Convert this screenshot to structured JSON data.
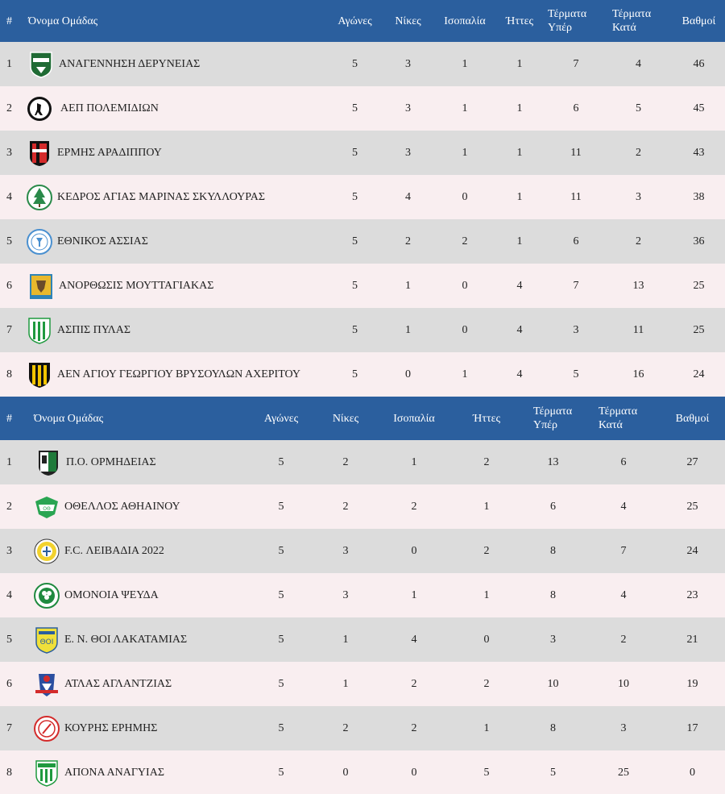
{
  "tables": [
    {
      "headers": {
        "pos": "#",
        "team": "Όνομα Ομάδας",
        "played": "Αγώνες",
        "wins": "Νίκες",
        "draws": "Ισοπαλία",
        "losses": "Ήττες",
        "gf1": "Τέρματα",
        "gf2": "Υπέρ",
        "ga1": "Τέρματα",
        "ga2": "Κατά",
        "points": "Βαθμοί"
      },
      "rows": [
        {
          "pos": "1",
          "team": "ΑΝΑΓΕΝΝΗΣΗ ΔΕΡΥΝΕΙΑΣ",
          "logo": "anagennisi-crest-icon",
          "played": "5",
          "wins": "3",
          "draws": "1",
          "losses": "1",
          "gf": "7",
          "ga": "4",
          "points": "46"
        },
        {
          "pos": "2",
          "team": "ΑΕΠ ΠΟΛΕΜΙΔΙΩΝ",
          "logo": "aep-crest-icon",
          "played": "5",
          "wins": "3",
          "draws": "1",
          "losses": "1",
          "gf": "6",
          "ga": "5",
          "points": "45"
        },
        {
          "pos": "3",
          "team": "ΕΡΜΗΣ ΑΡΑΔΙΠΠΟΥ",
          "logo": "ermis-crest-icon",
          "played": "5",
          "wins": "3",
          "draws": "1",
          "losses": "1",
          "gf": "11",
          "ga": "2",
          "points": "43"
        },
        {
          "pos": "4",
          "team": "ΚΕΔΡΟΣ ΑΓΙΑΣ ΜΑΡΙΝΑΣ ΣΚΥΛΛΟΥΡΑΣ",
          "logo": "kedros-crest-icon",
          "played": "5",
          "wins": "4",
          "draws": "0",
          "losses": "1",
          "gf": "11",
          "ga": "3",
          "points": "38"
        },
        {
          "pos": "5",
          "team": "ΕΘΝΙΚΟΣ ΑΣΣΙΑΣ",
          "logo": "ethnikos-crest-icon",
          "played": "5",
          "wins": "2",
          "draws": "2",
          "losses": "1",
          "gf": "6",
          "ga": "2",
          "points": "36"
        },
        {
          "pos": "6",
          "team": "ΑΝΟΡΘΩΣΙΣ ΜΟΥΤΤΑΓΙΑΚΑΣ",
          "logo": "anorthosis-crest-icon",
          "played": "5",
          "wins": "1",
          "draws": "0",
          "losses": "4",
          "gf": "7",
          "ga": "13",
          "points": "25"
        },
        {
          "pos": "7",
          "team": "ΑΣΠΙΣ ΠΥΛΑΣ",
          "logo": "aspis-crest-icon",
          "played": "5",
          "wins": "1",
          "draws": "0",
          "losses": "4",
          "gf": "3",
          "ga": "11",
          "points": "25"
        },
        {
          "pos": "8",
          "team": "ΑΕΝ ΑΓΙΟΥ ΓΕΩΡΓΙΟΥ ΒΡΥΣΟΥΛΩΝ ΑΧΕΡΙΤΟΥ",
          "logo": "aen-crest-icon",
          "played": "5",
          "wins": "0",
          "draws": "1",
          "losses": "4",
          "gf": "5",
          "ga": "16",
          "points": "24"
        }
      ]
    },
    {
      "headers": {
        "pos": "#",
        "team": "Όνομα Ομάδας",
        "played": "Αγώνες",
        "wins": "Νίκες",
        "draws": "Ισοπαλία",
        "losses": "Ήττες",
        "gf1": "Τέρματα",
        "gf2": "Υπέρ",
        "ga1": "Τέρματα",
        "ga2": "Κατά",
        "points": "Βαθμοί"
      },
      "rows": [
        {
          "pos": "1",
          "team": "Π.Ο. ΟΡΜΗΔΕΙΑΣ",
          "logo": "ormideia-crest-icon",
          "played": "5",
          "wins": "2",
          "draws": "1",
          "losses": "2",
          "gf": "13",
          "ga": "6",
          "points": "27"
        },
        {
          "pos": "2",
          "team": "ΟΘΕΛΛΟΣ ΑΘΗΑΙΝΟΥ",
          "logo": "othellos-crest-icon",
          "played": "5",
          "wins": "2",
          "draws": "2",
          "losses": "1",
          "gf": "6",
          "ga": "4",
          "points": "25"
        },
        {
          "pos": "3",
          "team": "F.C. ΛΕΙΒΑΔΙΑ 2022",
          "logo": "leivadia-crest-icon",
          "played": "5",
          "wins": "3",
          "draws": "0",
          "losses": "2",
          "gf": "8",
          "ga": "7",
          "points": "24"
        },
        {
          "pos": "4",
          "team": "ΟΜΟΝΟΙΑ ΨΕΥΔΑ",
          "logo": "omonoia-crest-icon",
          "played": "5",
          "wins": "3",
          "draws": "1",
          "losses": "1",
          "gf": "8",
          "ga": "4",
          "points": "23"
        },
        {
          "pos": "5",
          "team": "Ε. Ν. ΘΟΙ ΛΑΚΑΤΑΜΙΑΣ",
          "logo": "thoi-crest-icon",
          "played": "5",
          "wins": "1",
          "draws": "4",
          "losses": "0",
          "gf": "3",
          "ga": "2",
          "points": "21"
        },
        {
          "pos": "6",
          "team": "ΑΤΛΑΣ ΑΓΛΑΝΤΖΙΑΣ",
          "logo": "atlas-crest-icon",
          "played": "5",
          "wins": "1",
          "draws": "2",
          "losses": "2",
          "gf": "10",
          "ga": "10",
          "points": "19"
        },
        {
          "pos": "7",
          "team": "ΚΟΥΡΗΣ ΕΡΗΜΗΣ",
          "logo": "kouris-crest-icon",
          "played": "5",
          "wins": "2",
          "draws": "2",
          "losses": "1",
          "gf": "8",
          "ga": "3",
          "points": "17"
        },
        {
          "pos": "8",
          "team": "ΑΠΟΝΑ ΑΝΑΓΥΙΑΣ",
          "logo": "apona-crest-icon",
          "played": "5",
          "wins": "0",
          "draws": "0",
          "losses": "5",
          "gf": "5",
          "ga": "25",
          "points": "0"
        }
      ]
    }
  ],
  "colors": {
    "header_bg": "#2b5f9e",
    "row_odd": "#dcdcdc",
    "row_even": "#f9eef0"
  }
}
